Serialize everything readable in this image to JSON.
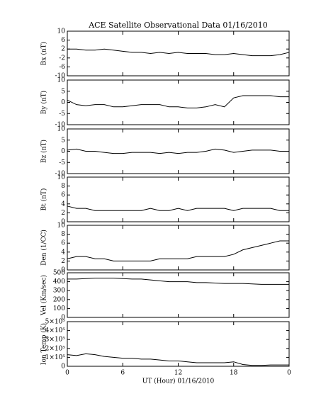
{
  "chart_data": [
    {
      "type": "line",
      "title": "ACE Satellite Observational Data   01/16/2010",
      "ylabel": "Bx (nT)",
      "color": "#000000",
      "x": [
        0,
        1,
        2,
        3,
        4,
        5,
        6,
        7,
        8,
        9,
        10,
        11,
        12,
        13,
        14,
        15,
        16,
        17,
        18,
        19,
        20,
        21,
        22,
        23,
        24
      ],
      "values": [
        2,
        2,
        1.5,
        1.5,
        2,
        1.5,
        1,
        0.5,
        0.5,
        0,
        0.5,
        0,
        0.5,
        0,
        0,
        0,
        -0.5,
        -0.5,
        0,
        -0.5,
        -1,
        -1,
        -1,
        -0.5,
        0.5
      ],
      "xlim": [
        0,
        24
      ],
      "xticks": [
        0,
        6,
        12,
        18,
        24
      ],
      "ylim": [
        -10,
        10
      ],
      "yticks": [
        -10,
        -6,
        -2,
        2,
        6,
        10
      ]
    },
    {
      "type": "line",
      "ylabel": "By (nT)",
      "color": "#000000",
      "x": [
        0,
        1,
        2,
        3,
        4,
        5,
        6,
        7,
        8,
        9,
        10,
        11,
        12,
        13,
        14,
        15,
        16,
        17,
        18,
        19,
        20,
        21,
        22,
        23,
        24
      ],
      "values": [
        1,
        -1,
        -1.5,
        -1,
        -1,
        -2,
        -2,
        -1.5,
        -1,
        -1,
        -1,
        -2,
        -2,
        -2.5,
        -2.5,
        -2,
        -1,
        -2,
        2,
        3,
        3,
        3,
        3,
        2.5,
        2.5
      ],
      "xlim": [
        0,
        24
      ],
      "xticks": [
        0,
        6,
        12,
        18,
        24
      ],
      "ylim": [
        -10,
        10
      ],
      "yticks": [
        -10,
        -5,
        0,
        5,
        10
      ]
    },
    {
      "type": "line",
      "ylabel": "Bz (nT)",
      "color": "#000000",
      "x": [
        0,
        1,
        2,
        3,
        4,
        5,
        6,
        7,
        8,
        9,
        10,
        11,
        12,
        13,
        14,
        15,
        16,
        17,
        18,
        19,
        20,
        21,
        22,
        23,
        24
      ],
      "values": [
        0.5,
        1,
        0,
        0,
        -0.5,
        -1,
        -1,
        -0.5,
        -0.5,
        -0.5,
        -1,
        -0.5,
        -1,
        -0.5,
        -0.5,
        0,
        1,
        0.5,
        -0.5,
        0,
        0.5,
        0.5,
        0.5,
        0,
        0
      ],
      "xlim": [
        0,
        24
      ],
      "xticks": [
        0,
        6,
        12,
        18,
        24
      ],
      "ylim": [
        -10,
        10
      ],
      "yticks": [
        -10,
        -5,
        0,
        5,
        10
      ]
    },
    {
      "type": "line",
      "ylabel": "Bt (nT)",
      "color": "#000000",
      "x": [
        0,
        1,
        2,
        3,
        4,
        5,
        6,
        7,
        8,
        9,
        10,
        11,
        12,
        13,
        14,
        15,
        16,
        17,
        18,
        19,
        20,
        21,
        22,
        23,
        24
      ],
      "values": [
        3.5,
        3,
        3,
        2.5,
        2.5,
        2.5,
        2.5,
        2.5,
        2.5,
        3,
        2.5,
        2.5,
        3,
        2.5,
        3,
        3,
        3,
        3,
        2.5,
        3,
        3,
        3,
        3,
        2.5,
        2.5
      ],
      "xlim": [
        0,
        24
      ],
      "xticks": [
        0,
        6,
        12,
        18,
        24
      ],
      "ylim": [
        0,
        10
      ],
      "yticks": [
        0,
        2,
        4,
        6,
        8,
        10
      ]
    },
    {
      "type": "line",
      "ylabel": "Den (1/CC)",
      "color": "#000000",
      "x": [
        0,
        1,
        2,
        3,
        4,
        5,
        6,
        7,
        8,
        9,
        10,
        11,
        12,
        13,
        14,
        15,
        16,
        17,
        18,
        19,
        20,
        21,
        22,
        23,
        24
      ],
      "values": [
        2.5,
        3,
        3,
        2.5,
        2.5,
        2,
        2,
        2,
        2,
        2,
        2.5,
        2.5,
        2.5,
        2.5,
        3,
        3,
        3,
        3,
        3.5,
        4.5,
        5,
        5.5,
        6,
        6.5,
        6.5
      ],
      "xlim": [
        0,
        24
      ],
      "xticks": [
        0,
        6,
        12,
        18,
        24
      ],
      "ylim": [
        0,
        10
      ],
      "yticks": [
        0,
        2,
        4,
        6,
        8,
        10
      ]
    },
    {
      "type": "line",
      "ylabel": "Vel (Km/sec)",
      "color": "#000000",
      "x": [
        0,
        1,
        2,
        3,
        4,
        5,
        6,
        7,
        8,
        9,
        10,
        11,
        12,
        13,
        14,
        15,
        16,
        17,
        18,
        19,
        20,
        21,
        22,
        23,
        24
      ],
      "values": [
        430,
        430,
        435,
        440,
        440,
        440,
        435,
        430,
        430,
        420,
        410,
        400,
        400,
        400,
        390,
        390,
        385,
        380,
        380,
        380,
        375,
        370,
        370,
        370,
        370
      ],
      "xlim": [
        0,
        24
      ],
      "xticks": [
        0,
        6,
        12,
        18,
        24
      ],
      "ylim": [
        0,
        500
      ],
      "yticks": [
        0,
        100,
        200,
        300,
        400,
        500
      ]
    },
    {
      "type": "line",
      "ylabel": "Ion Temp (K)",
      "color": "#000000",
      "xlabel": "UT (Hour)   01/16/2010",
      "x": [
        0,
        1,
        2,
        3,
        4,
        5,
        6,
        7,
        8,
        9,
        10,
        11,
        12,
        13,
        14,
        15,
        16,
        17,
        18,
        19,
        20,
        21,
        22,
        23,
        24
      ],
      "values": [
        130000,
        120000,
        140000,
        130000,
        110000,
        100000,
        90000,
        90000,
        80000,
        80000,
        70000,
        60000,
        60000,
        50000,
        40000,
        40000,
        40000,
        40000,
        50000,
        20000,
        10000,
        10000,
        15000,
        15000,
        15000
      ],
      "xlim": [
        0,
        24
      ],
      "xticks": [
        0,
        6,
        12,
        18,
        {
          "value": 24,
          "label": "0"
        }
      ],
      "ylim": [
        0,
        500000
      ],
      "yticks": [
        0,
        {
          "value": 100000,
          "label": "1×10⁵"
        },
        {
          "value": 200000,
          "label": "2×10⁵"
        },
        {
          "value": 300000,
          "label": "3×10⁵"
        },
        {
          "value": 400000,
          "label": "4×10⁵"
        },
        {
          "value": 500000,
          "label": "5×10⁵"
        }
      ]
    }
  ]
}
